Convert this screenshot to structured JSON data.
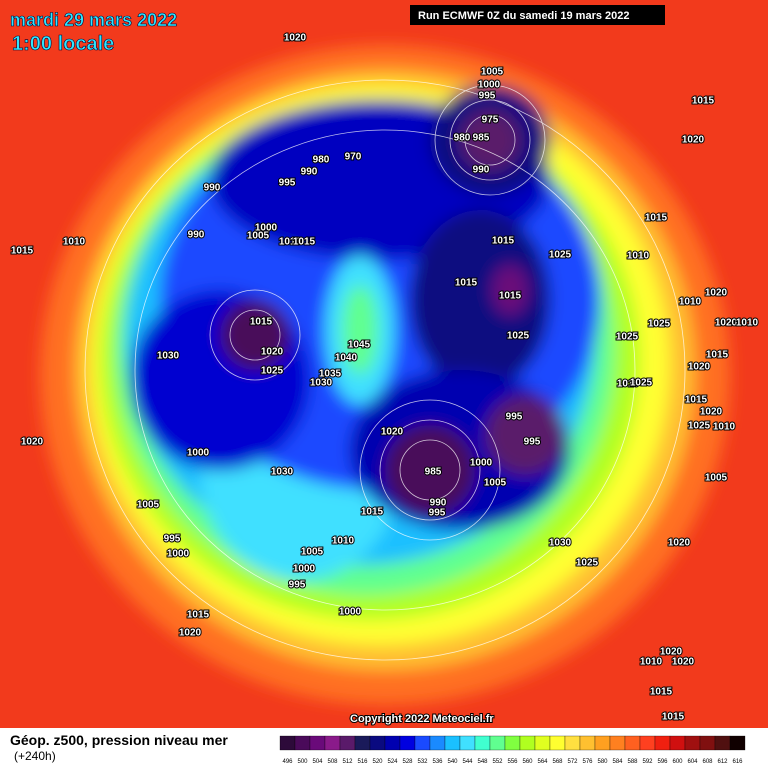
{
  "header": {
    "date": "mardi 29 mars 2022",
    "time": "1:00 locale",
    "run": "Run ECMWF 0Z du samedi 19 mars 2022"
  },
  "copyright": "Copyright 2022 Meteociel.fr",
  "legend": {
    "title": "Géop. z500, pression niveau mer",
    "lead": "(+240h)",
    "ticks": [
      496,
      500,
      504,
      508,
      512,
      516,
      520,
      524,
      528,
      532,
      536,
      540,
      544,
      548,
      552,
      556,
      560,
      564,
      568,
      572,
      576,
      580,
      584,
      588,
      592,
      596,
      600,
      604,
      608,
      612,
      616
    ],
    "colors": [
      "#2d0a3a",
      "#4a0a5a",
      "#6a0a7a",
      "#8a1a8a",
      "#5a1a6a",
      "#1a1a5a",
      "#0a0a80",
      "#0000b0",
      "#0000e0",
      "#1a4aff",
      "#1a8aff",
      "#1ac0ff",
      "#40e0ff",
      "#40ffd0",
      "#60ff90",
      "#80ff40",
      "#b0ff20",
      "#e0ff20",
      "#ffff30",
      "#ffe040",
      "#ffc030",
      "#ffa020",
      "#ff8020",
      "#ff6020",
      "#ff4020",
      "#f02010",
      "#d01010",
      "#a01010",
      "#801010",
      "#501010",
      "#100000"
    ]
  },
  "isobar_labels": [
    1020,
    1005,
    1000,
    995,
    1015,
    975,
    980,
    970,
    985,
    980,
    990,
    990,
    1020,
    995,
    990,
    1015,
    1000,
    990,
    1005,
    1010,
    1015,
    1010,
    1015,
    1015,
    1025,
    1010,
    1015,
    1015,
    1010,
    1020,
    1015,
    1025,
    1020,
    1010,
    1025,
    1025,
    1045,
    1020,
    1030,
    1040,
    1015,
    1020,
    1025,
    1035,
    1030,
    1010,
    1025,
    1015,
    1020,
    995,
    1025,
    1010,
    1020,
    1020,
    995,
    1000,
    1000,
    985,
    1030,
    1005,
    1005,
    990,
    1005,
    995,
    1015,
    995,
    1010,
    1030,
    1020,
    1000,
    1005,
    1025,
    1000,
    995,
    1000,
    1015,
    1020,
    1020,
    1010,
    1020,
    1015,
    1015
  ]
}
